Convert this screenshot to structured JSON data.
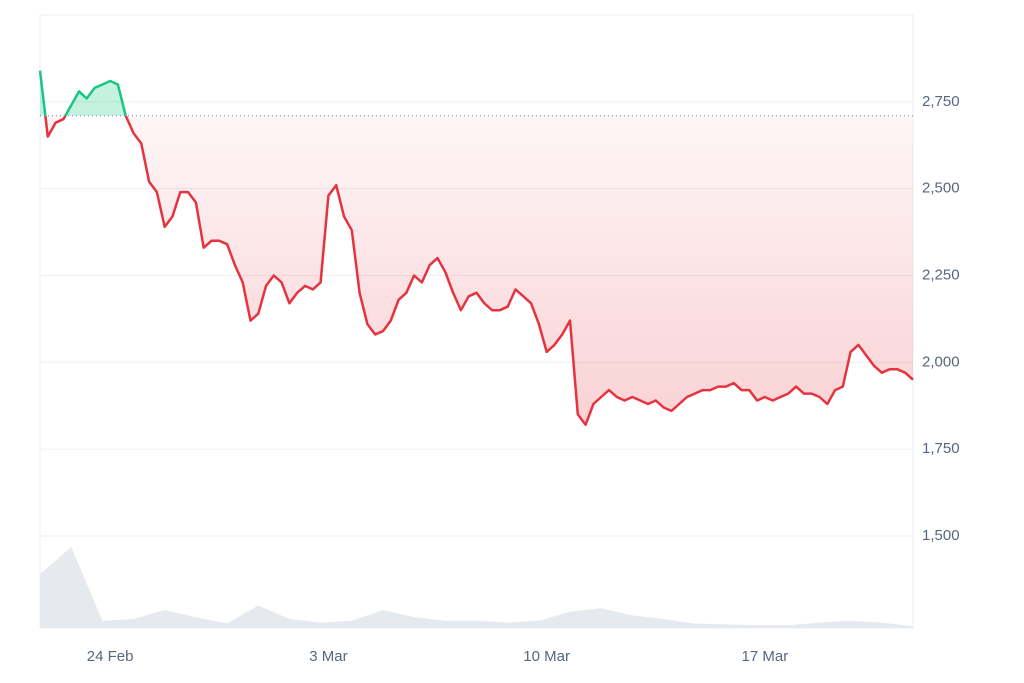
{
  "chart_data": {
    "type": "line",
    "categories": [
      null,
      null,
      null,
      null,
      null,
      null,
      null,
      null,
      null,
      "24 Feb",
      null,
      null,
      null,
      null,
      null,
      null,
      null,
      null,
      null,
      null,
      null,
      null,
      null,
      null,
      null,
      null,
      null,
      null,
      null,
      null,
      null,
      null,
      null,
      null,
      null,
      null,
      null,
      "3 Mar",
      null,
      null,
      null,
      null,
      null,
      null,
      null,
      null,
      null,
      null,
      null,
      null,
      null,
      null,
      null,
      null,
      null,
      null,
      null,
      null,
      null,
      null,
      null,
      null,
      null,
      null,
      null,
      "10 Mar",
      null,
      null,
      null,
      null,
      null,
      null,
      null,
      null,
      null,
      null,
      null,
      null,
      null,
      null,
      null,
      null,
      null,
      null,
      null,
      null,
      null,
      null,
      null,
      null,
      null,
      null,
      null,
      "17 Mar",
      null,
      null,
      null,
      null,
      null,
      null,
      null,
      null,
      null,
      null,
      null,
      null,
      null,
      null,
      null,
      null,
      null,
      null,
      null
    ],
    "series": [
      {
        "color": "#e5333f",
        "up_color": "#16c784",
        "values": [
          2840,
          2650,
          2690,
          2700,
          2740,
          2780,
          2760,
          2790,
          2800,
          2810,
          2800,
          2710,
          2660,
          2630,
          2520,
          2490,
          2390,
          2420,
          2490,
          2490,
          2460,
          2330,
          2350,
          2350,
          2340,
          2280,
          2230,
          2120,
          2140,
          2220,
          2250,
          2230,
          2170,
          2200,
          2220,
          2210,
          2230,
          2480,
          2510,
          2420,
          2380,
          2200,
          2110,
          2080,
          2090,
          2120,
          2180,
          2200,
          2250,
          2230,
          2280,
          2300,
          2260,
          2200,
          2150,
          2190,
          2200,
          2170,
          2150,
          2150,
          2160,
          2210,
          2190,
          2170,
          2110,
          2030,
          2050,
          2080,
          2120,
          1850,
          1820,
          1880,
          1900,
          1920,
          1900,
          1890,
          1900,
          1890,
          1880,
          1890,
          1870,
          1860,
          1880,
          1900,
          1910,
          1920,
          1920,
          1930,
          1930,
          1940,
          1920,
          1920,
          1890,
          1900,
          1890,
          1900,
          1910,
          1930,
          1910,
          1910,
          1900,
          1880,
          1920,
          1930,
          2030,
          2050,
          2020,
          1990,
          1970,
          1980,
          1980,
          1970,
          1950
        ]
      }
    ],
    "baseline": 2710,
    "ylim": [
      1235,
      3000
    ],
    "yticks": [
      {
        "value": 1500,
        "label": "1,500"
      },
      {
        "value": 1750,
        "label": "1,750"
      },
      {
        "value": 2000,
        "label": "2,000"
      },
      {
        "value": 2250,
        "label": "2,250"
      },
      {
        "value": 2500,
        "label": "2,500"
      },
      {
        "value": 2750,
        "label": "2,750"
      }
    ],
    "grid": true,
    "volume": {
      "color": "#e6e9ee",
      "ylim": [
        0,
        100
      ],
      "values": [
        60,
        90,
        8,
        10,
        20,
        12,
        5,
        25,
        10,
        6,
        8,
        20,
        12,
        8,
        8,
        6,
        8,
        18,
        22,
        14,
        10,
        5,
        4,
        3,
        3,
        6,
        8,
        6,
        2
      ]
    }
  }
}
